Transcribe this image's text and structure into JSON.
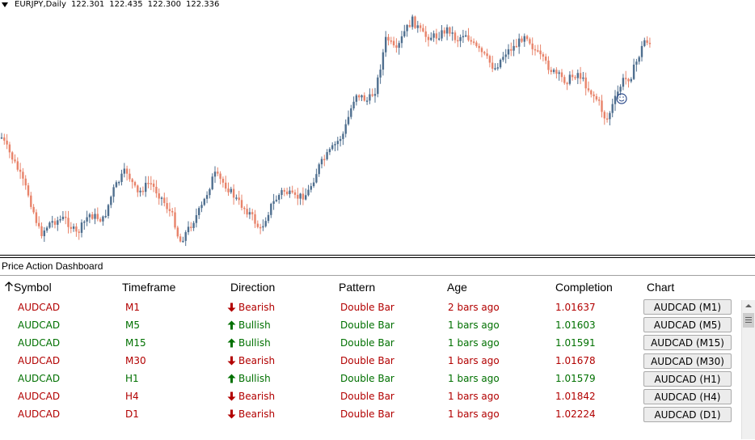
{
  "chart": {
    "symbol_timeframe": "EURJPY,Daily",
    "ohlc": [
      "122.301",
      "122.435",
      "122.300",
      "122.336"
    ],
    "smiley_icon": "smiley-face-icon",
    "bull_color": "#4f6f8f",
    "bear_color": "#e8836a"
  },
  "dashboard": {
    "title": "Price Action Dashboard",
    "headers": {
      "symbol": "Symbol",
      "sort_icon": "arrow-up-icon",
      "timeframe": "Timeframe",
      "direction": "Direction",
      "pattern": "Pattern",
      "age": "Age",
      "completion": "Completion",
      "chart": "Chart"
    },
    "colors": {
      "bearish": "#b20000",
      "bullish": "#007000"
    },
    "rows": [
      {
        "symbol": "AUDCAD",
        "timeframe": "M1",
        "direction": "Bearish",
        "dir_type": "bear",
        "pattern": "Double Bar",
        "age": "2 bars ago",
        "completion": "1.01637",
        "button": "AUDCAD (M1)"
      },
      {
        "symbol": "AUDCAD",
        "timeframe": "M5",
        "direction": "Bullish",
        "dir_type": "bull",
        "pattern": "Double Bar",
        "age": "1 bars ago",
        "completion": "1.01603",
        "button": "AUDCAD (M5)"
      },
      {
        "symbol": "AUDCAD",
        "timeframe": "M15",
        "direction": "Bullish",
        "dir_type": "bull",
        "pattern": "Double Bar",
        "age": "1 bars ago",
        "completion": "1.01591",
        "button": "AUDCAD (M15)"
      },
      {
        "symbol": "AUDCAD",
        "timeframe": "M30",
        "direction": "Bearish",
        "dir_type": "bear",
        "pattern": "Double Bar",
        "age": "1 bars ago",
        "completion": "1.01678",
        "button": "AUDCAD (M30)"
      },
      {
        "symbol": "AUDCAD",
        "timeframe": "H1",
        "direction": "Bullish",
        "dir_type": "bull",
        "pattern": "Double Bar",
        "age": "1 bars ago",
        "completion": "1.01579",
        "button": "AUDCAD (H1)"
      },
      {
        "symbol": "AUDCAD",
        "timeframe": "H4",
        "direction": "Bearish",
        "dir_type": "bear",
        "pattern": "Double Bar",
        "age": "1 bars ago",
        "completion": "1.01842",
        "button": "AUDCAD (H4)"
      },
      {
        "symbol": "AUDCAD",
        "timeframe": "D1",
        "direction": "Bearish",
        "dir_type": "bear",
        "pattern": "Double Bar",
        "age": "1 bars ago",
        "completion": "1.02224",
        "button": "AUDCAD (D1)"
      }
    ]
  }
}
